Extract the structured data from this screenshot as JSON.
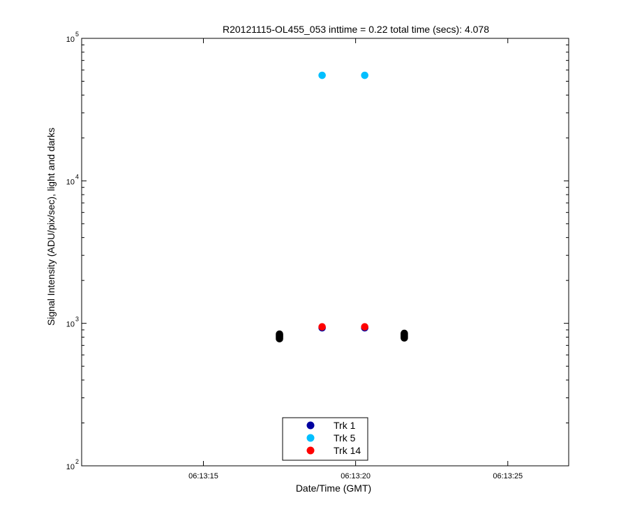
{
  "chart_data": {
    "type": "scatter",
    "title": "R20121115-OL455_053 inttime = 0.22 total time (secs): 4.078",
    "xlabel": "Date/Time (GMT)",
    "ylabel": "Signal Intensity (ADU/pix/sec), light and darks",
    "yscale": "log",
    "ylim": [
      100,
      100000
    ],
    "xlim": [
      "06:13:11",
      "06:13:27"
    ],
    "xticks": [
      "06:13:15",
      "06:13:20",
      "06:13:25"
    ],
    "yticks": [
      {
        "base": "10",
        "exp": "2",
        "value": 100
      },
      {
        "base": "10",
        "exp": "3",
        "value": 1000
      },
      {
        "base": "10",
        "exp": "4",
        "value": 10000
      },
      {
        "base": "10",
        "exp": "5",
        "value": 100000
      }
    ],
    "grid": false,
    "legend_position": "bottom-center",
    "series": [
      {
        "name": "Trk 1",
        "color": "#0000a0",
        "points": [
          {
            "x": "06:13:18.9",
            "y": 930
          },
          {
            "x": "06:13:20.3",
            "y": 930
          }
        ]
      },
      {
        "name": "Trk 5",
        "color": "#00bfff",
        "points": [
          {
            "x": "06:13:18.9",
            "y": 55000
          },
          {
            "x": "06:13:20.3",
            "y": 55000
          }
        ]
      },
      {
        "name": "Trk 14",
        "color": "#ff0000",
        "points": [
          {
            "x": "06:13:18.9",
            "y": 945
          },
          {
            "x": "06:13:20.3",
            "y": 945
          }
        ]
      }
    ],
    "darks": {
      "color": "#000000",
      "points": [
        {
          "x": "06:13:17.5",
          "y": 780
        },
        {
          "x": "06:13:17.5",
          "y": 795
        },
        {
          "x": "06:13:17.5",
          "y": 810
        },
        {
          "x": "06:13:17.5",
          "y": 825
        },
        {
          "x": "06:13:17.5",
          "y": 840
        },
        {
          "x": "06:13:21.6",
          "y": 790
        },
        {
          "x": "06:13:21.6",
          "y": 805
        },
        {
          "x": "06:13:21.6",
          "y": 820
        },
        {
          "x": "06:13:21.6",
          "y": 835
        },
        {
          "x": "06:13:21.6",
          "y": 850
        }
      ]
    }
  }
}
